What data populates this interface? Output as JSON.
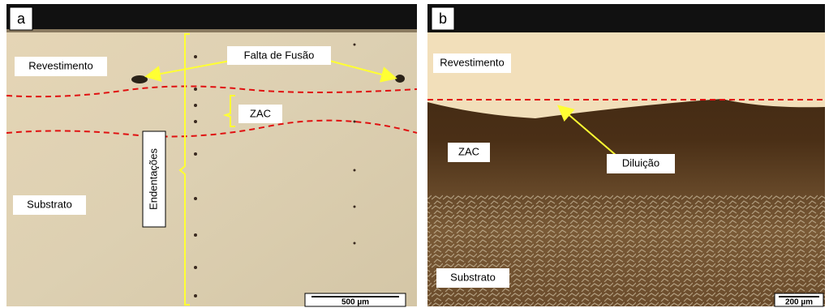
{
  "panels": [
    {
      "label": "a",
      "annotations": [
        "Revestimento",
        "Falta de Fusão",
        "ZAC",
        "Endentações",
        "Substrato"
      ],
      "scale_bar": "500 µm"
    },
    {
      "label": "b",
      "annotations": [
        "Revestimento",
        "ZAC",
        "Diluição",
        "Substrato"
      ],
      "scale_bar": "200 µm"
    }
  ]
}
